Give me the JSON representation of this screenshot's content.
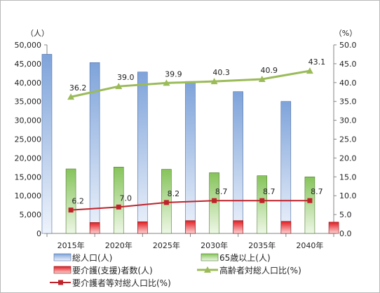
{
  "chart_data": {
    "type": "bar",
    "categories": [
      "2015年",
      "2020年",
      "2025年",
      "2030年",
      "2035年",
      "2040年"
    ],
    "left_axis": {
      "unit_label": "（人）",
      "ylim": [
        0,
        50000
      ],
      "ticks": [
        "0",
        "5,000",
        "10,000",
        "15,000",
        "20,000",
        "25,000",
        "30,000",
        "35,000",
        "40,000",
        "45,000",
        "50,000"
      ]
    },
    "right_axis": {
      "unit_label": "（%）",
      "ylim": [
        0,
        50
      ],
      "ticks": [
        "0.0",
        "5.0",
        "10.0",
        "15.0",
        "20.0",
        "25.0",
        "30.0",
        "35.0",
        "40.0",
        "45.0",
        "50.0"
      ]
    },
    "series": [
      {
        "name": "総人口(人)",
        "type": "bar",
        "axis": "left",
        "color": "#8fb0e0",
        "values": [
          47500,
          45300,
          42800,
          40300,
          37600,
          35000
        ]
      },
      {
        "name": "65歳以上(人)",
        "type": "bar",
        "axis": "left",
        "color": "#9ed07a",
        "values": [
          17100,
          17600,
          17000,
          16100,
          15300,
          15000
        ]
      },
      {
        "name": "要介護(支援)者数(人)",
        "type": "bar",
        "axis": "left",
        "color": "#e8383a",
        "values": [
          2900,
          3100,
          3400,
          3400,
          3200,
          3000
        ]
      },
      {
        "name": "高齢者対総人口比(%)",
        "type": "line",
        "axis": "right",
        "color": "#9bbb59",
        "marker": "triangle",
        "values": [
          36.2,
          39.0,
          39.9,
          40.3,
          40.9,
          43.1
        ],
        "labels": [
          "36.2",
          "39.0",
          "39.9",
          "40.3",
          "40.9",
          "43.1"
        ]
      },
      {
        "name": "要介護者等対総人口比(%)",
        "type": "line",
        "axis": "right",
        "color": "#c0222a",
        "marker": "square",
        "values": [
          6.2,
          7.0,
          8.2,
          8.7,
          8.7,
          8.7
        ],
        "labels": [
          "6.2",
          "7.0",
          "8.2",
          "8.7",
          "8.7",
          "8.7"
        ]
      }
    ],
    "legend_position": "bottom",
    "grid": false
  }
}
